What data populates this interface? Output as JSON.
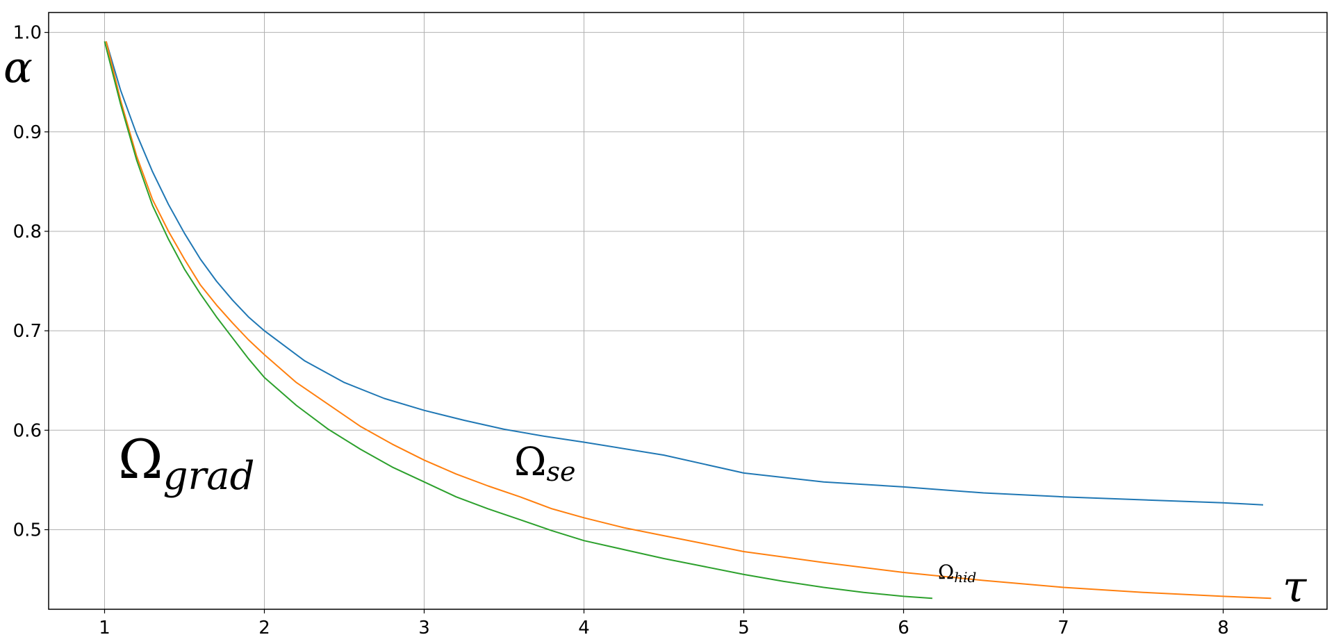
{
  "chart_data": {
    "type": "line",
    "xlabel": "τ",
    "ylabel": "α",
    "xlim": [
      0.65,
      8.65
    ],
    "ylim": [
      0.42,
      1.02
    ],
    "xticks": [
      "1",
      "2",
      "3",
      "4",
      "5",
      "6",
      "7",
      "8"
    ],
    "yticks": [
      "0.5",
      "0.6",
      "0.7",
      "0.8",
      "0.9",
      "1.0"
    ],
    "grid": true,
    "series": [
      {
        "color": "#1f77b4",
        "x": [
          1.01,
          1.1,
          1.2,
          1.3,
          1.4,
          1.5,
          1.6,
          1.7,
          1.8,
          1.9,
          2.0,
          2.25,
          2.5,
          2.75,
          3.0,
          3.25,
          3.5,
          3.75,
          4.0,
          4.5,
          5.0,
          5.5,
          6.0,
          6.5,
          7.0,
          7.5,
          8.0,
          8.25
        ],
        "y": [
          0.991,
          0.942,
          0.898,
          0.86,
          0.827,
          0.798,
          0.772,
          0.75,
          0.731,
          0.714,
          0.7,
          0.67,
          0.648,
          0.632,
          0.62,
          0.61,
          0.601,
          0.594,
          0.588,
          0.575,
          0.557,
          0.548,
          0.543,
          0.537,
          0.533,
          0.53,
          0.527,
          0.525
        ]
      },
      {
        "color": "#ff7f0e",
        "x": [
          1.01,
          1.1,
          1.2,
          1.3,
          1.4,
          1.5,
          1.6,
          1.7,
          1.8,
          1.9,
          2.0,
          2.2,
          2.4,
          2.6,
          2.8,
          3.0,
          3.2,
          3.4,
          3.6,
          3.8,
          4.0,
          4.25,
          4.5,
          4.75,
          5.0,
          5.5,
          6.0,
          6.5,
          7.0,
          7.5,
          8.0,
          8.3
        ],
        "y": [
          0.991,
          0.932,
          0.876,
          0.832,
          0.8,
          0.772,
          0.746,
          0.726,
          0.708,
          0.691,
          0.676,
          0.648,
          0.626,
          0.604,
          0.586,
          0.57,
          0.556,
          0.544,
          0.533,
          0.521,
          0.512,
          0.502,
          0.494,
          0.486,
          0.478,
          0.467,
          0.457,
          0.449,
          0.442,
          0.437,
          0.433,
          0.431
        ]
      },
      {
        "color": "#2ca02c",
        "x": [
          1.0,
          1.1,
          1.2,
          1.3,
          1.4,
          1.5,
          1.6,
          1.7,
          1.8,
          1.9,
          2.0,
          2.2,
          2.4,
          2.6,
          2.8,
          3.0,
          3.2,
          3.4,
          3.6,
          3.8,
          4.0,
          4.25,
          4.5,
          4.75,
          5.0,
          5.25,
          5.5,
          5.75,
          6.0,
          6.18
        ],
        "y": [
          0.991,
          0.928,
          0.872,
          0.826,
          0.792,
          0.762,
          0.737,
          0.714,
          0.693,
          0.672,
          0.653,
          0.625,
          0.601,
          0.581,
          0.563,
          0.548,
          0.533,
          0.521,
          0.51,
          0.499,
          0.489,
          0.48,
          0.471,
          0.463,
          0.455,
          0.448,
          0.442,
          0.437,
          0.433,
          0.431
        ]
      }
    ],
    "annotations": [
      {
        "main": "Ω",
        "sub": "grad"
      },
      {
        "main": "Ω",
        "sub": "se"
      },
      {
        "main": "Ω",
        "sub": "hid"
      }
    ]
  }
}
